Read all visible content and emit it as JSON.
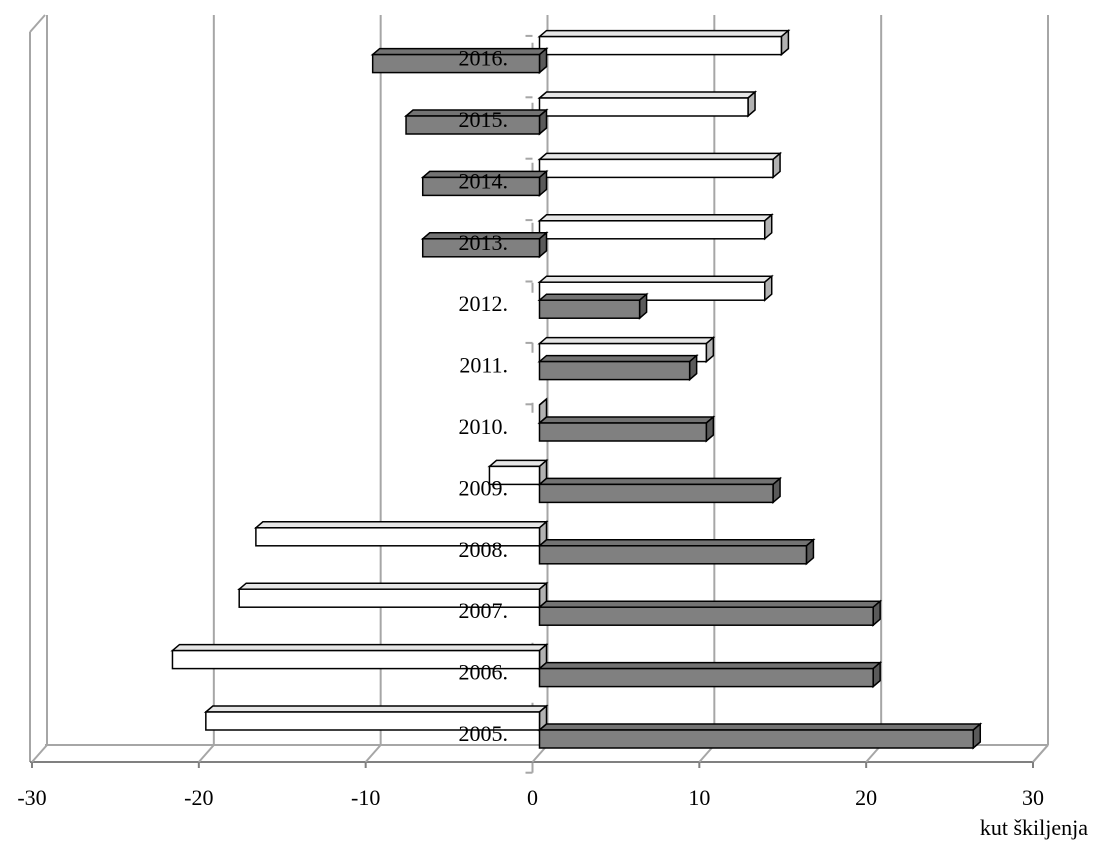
{
  "chart_data": {
    "type": "bar",
    "orientation": "horizontal",
    "x_label": "kut škiljenja",
    "categories": [
      "2005.",
      "2006.",
      "2007.",
      "2008.",
      "2009.",
      "2010.",
      "2011.",
      "2012.",
      "2013.",
      "2014.",
      "2015.",
      "2016."
    ],
    "series": [
      {
        "color": "#808080",
        "values": [
          26,
          20,
          20,
          16,
          14,
          10,
          9,
          6,
          -7,
          -7,
          -8,
          -10
        ]
      },
      {
        "color": "#ffffff",
        "values": [
          -20,
          -22,
          -18,
          -17,
          -3,
          0,
          10,
          13.5,
          13.5,
          14,
          12.5,
          14.5
        ]
      }
    ],
    "xlim": [
      -30,
      30
    ],
    "xticks": [
      -30,
      -20,
      -10,
      0,
      10,
      20,
      30
    ],
    "grid": true
  }
}
